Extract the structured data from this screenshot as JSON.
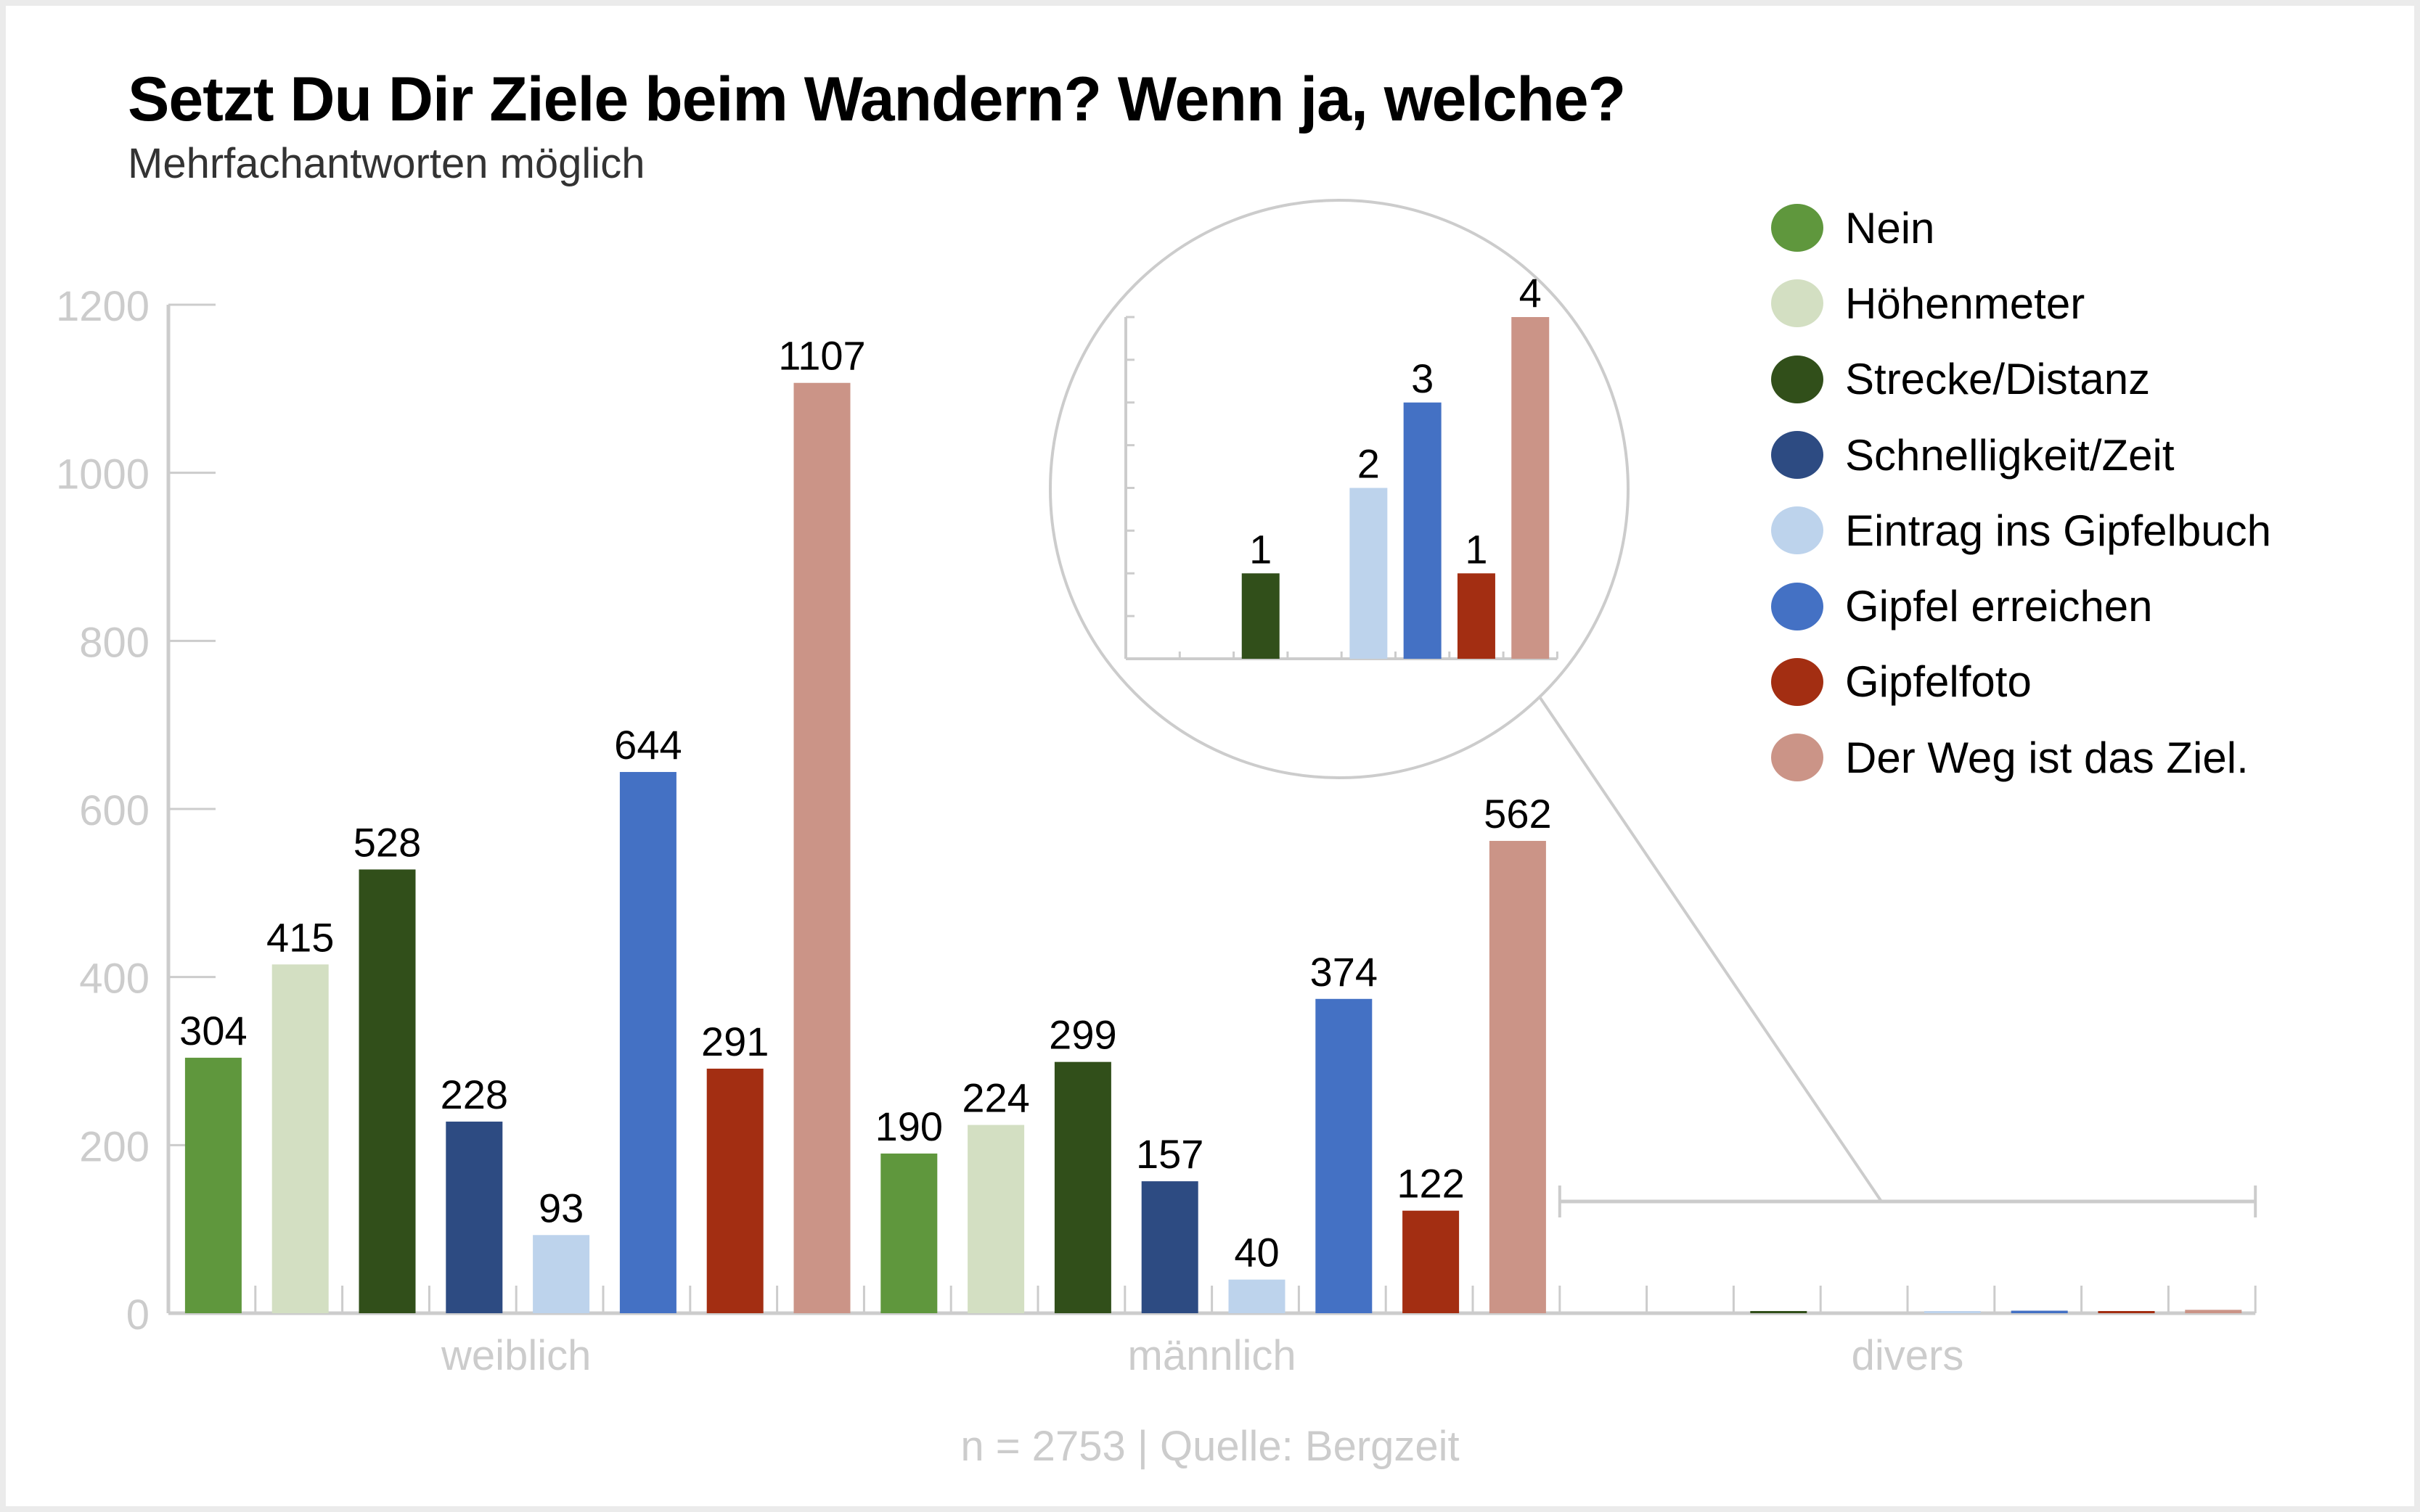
{
  "header": {
    "title": "Setzt Du Dir Ziele beim Wandern? Wenn ja, welche?",
    "subtitle": "Mehrfachantworten möglich"
  },
  "footer": {
    "text": "n = 2753 | Quelle: Bergzeit"
  },
  "chart_data": {
    "type": "bar",
    "title": "Setzt Du Dir Ziele beim Wandern? Wenn ja, welche?",
    "subtitle": "Mehrfachantworten möglich",
    "xlabel": "",
    "ylabel": "",
    "ylim": [
      0,
      1200
    ],
    "yticks": [
      0,
      200,
      400,
      600,
      800,
      1000,
      1200
    ],
    "ytick_labels": [
      "0",
      "200",
      "400",
      "600",
      "800",
      "1000",
      "1200"
    ],
    "grid": false,
    "legend_position": "top-right",
    "categories": [
      "weiblich",
      "männlich",
      "divers"
    ],
    "series": [
      {
        "name": "Nein",
        "color": "#5f973d",
        "values": [
          304,
          190,
          0
        ]
      },
      {
        "name": "Höhenmeter",
        "color": "#d3dfc2",
        "values": [
          415,
          224,
          0
        ]
      },
      {
        "name": "Strecke/Distanz",
        "color": "#314f1a",
        "values": [
          528,
          299,
          1
        ]
      },
      {
        "name": "Schnelligkeit/Zeit",
        "color": "#2d4b82",
        "values": [
          228,
          157,
          0
        ]
      },
      {
        "name": "Eintrag ins Gipfelbuch",
        "color": "#bdd3ec",
        "values": [
          93,
          40,
          2
        ]
      },
      {
        "name": "Gipfel erreichen",
        "color": "#4471c4",
        "values": [
          644,
          374,
          3
        ]
      },
      {
        "name": "Gipfelfoto",
        "color": "#a32e12",
        "values": [
          291,
          122,
          1
        ]
      },
      {
        "name": "Der Weg ist das Ziel.",
        "color": "#cb9487",
        "values": [
          1107,
          562,
          4
        ]
      }
    ],
    "inset": {
      "description": "Zoomed view of 'divers' group",
      "category": "divers",
      "ylim": [
        0,
        4
      ],
      "values": [
        0,
        0,
        1,
        0,
        2,
        3,
        1,
        4
      ],
      "labels": [
        "",
        "",
        "1",
        "",
        "2",
        "3",
        "1",
        "4"
      ]
    },
    "footnote": "n = 2753 | Quelle: Bergzeit"
  }
}
